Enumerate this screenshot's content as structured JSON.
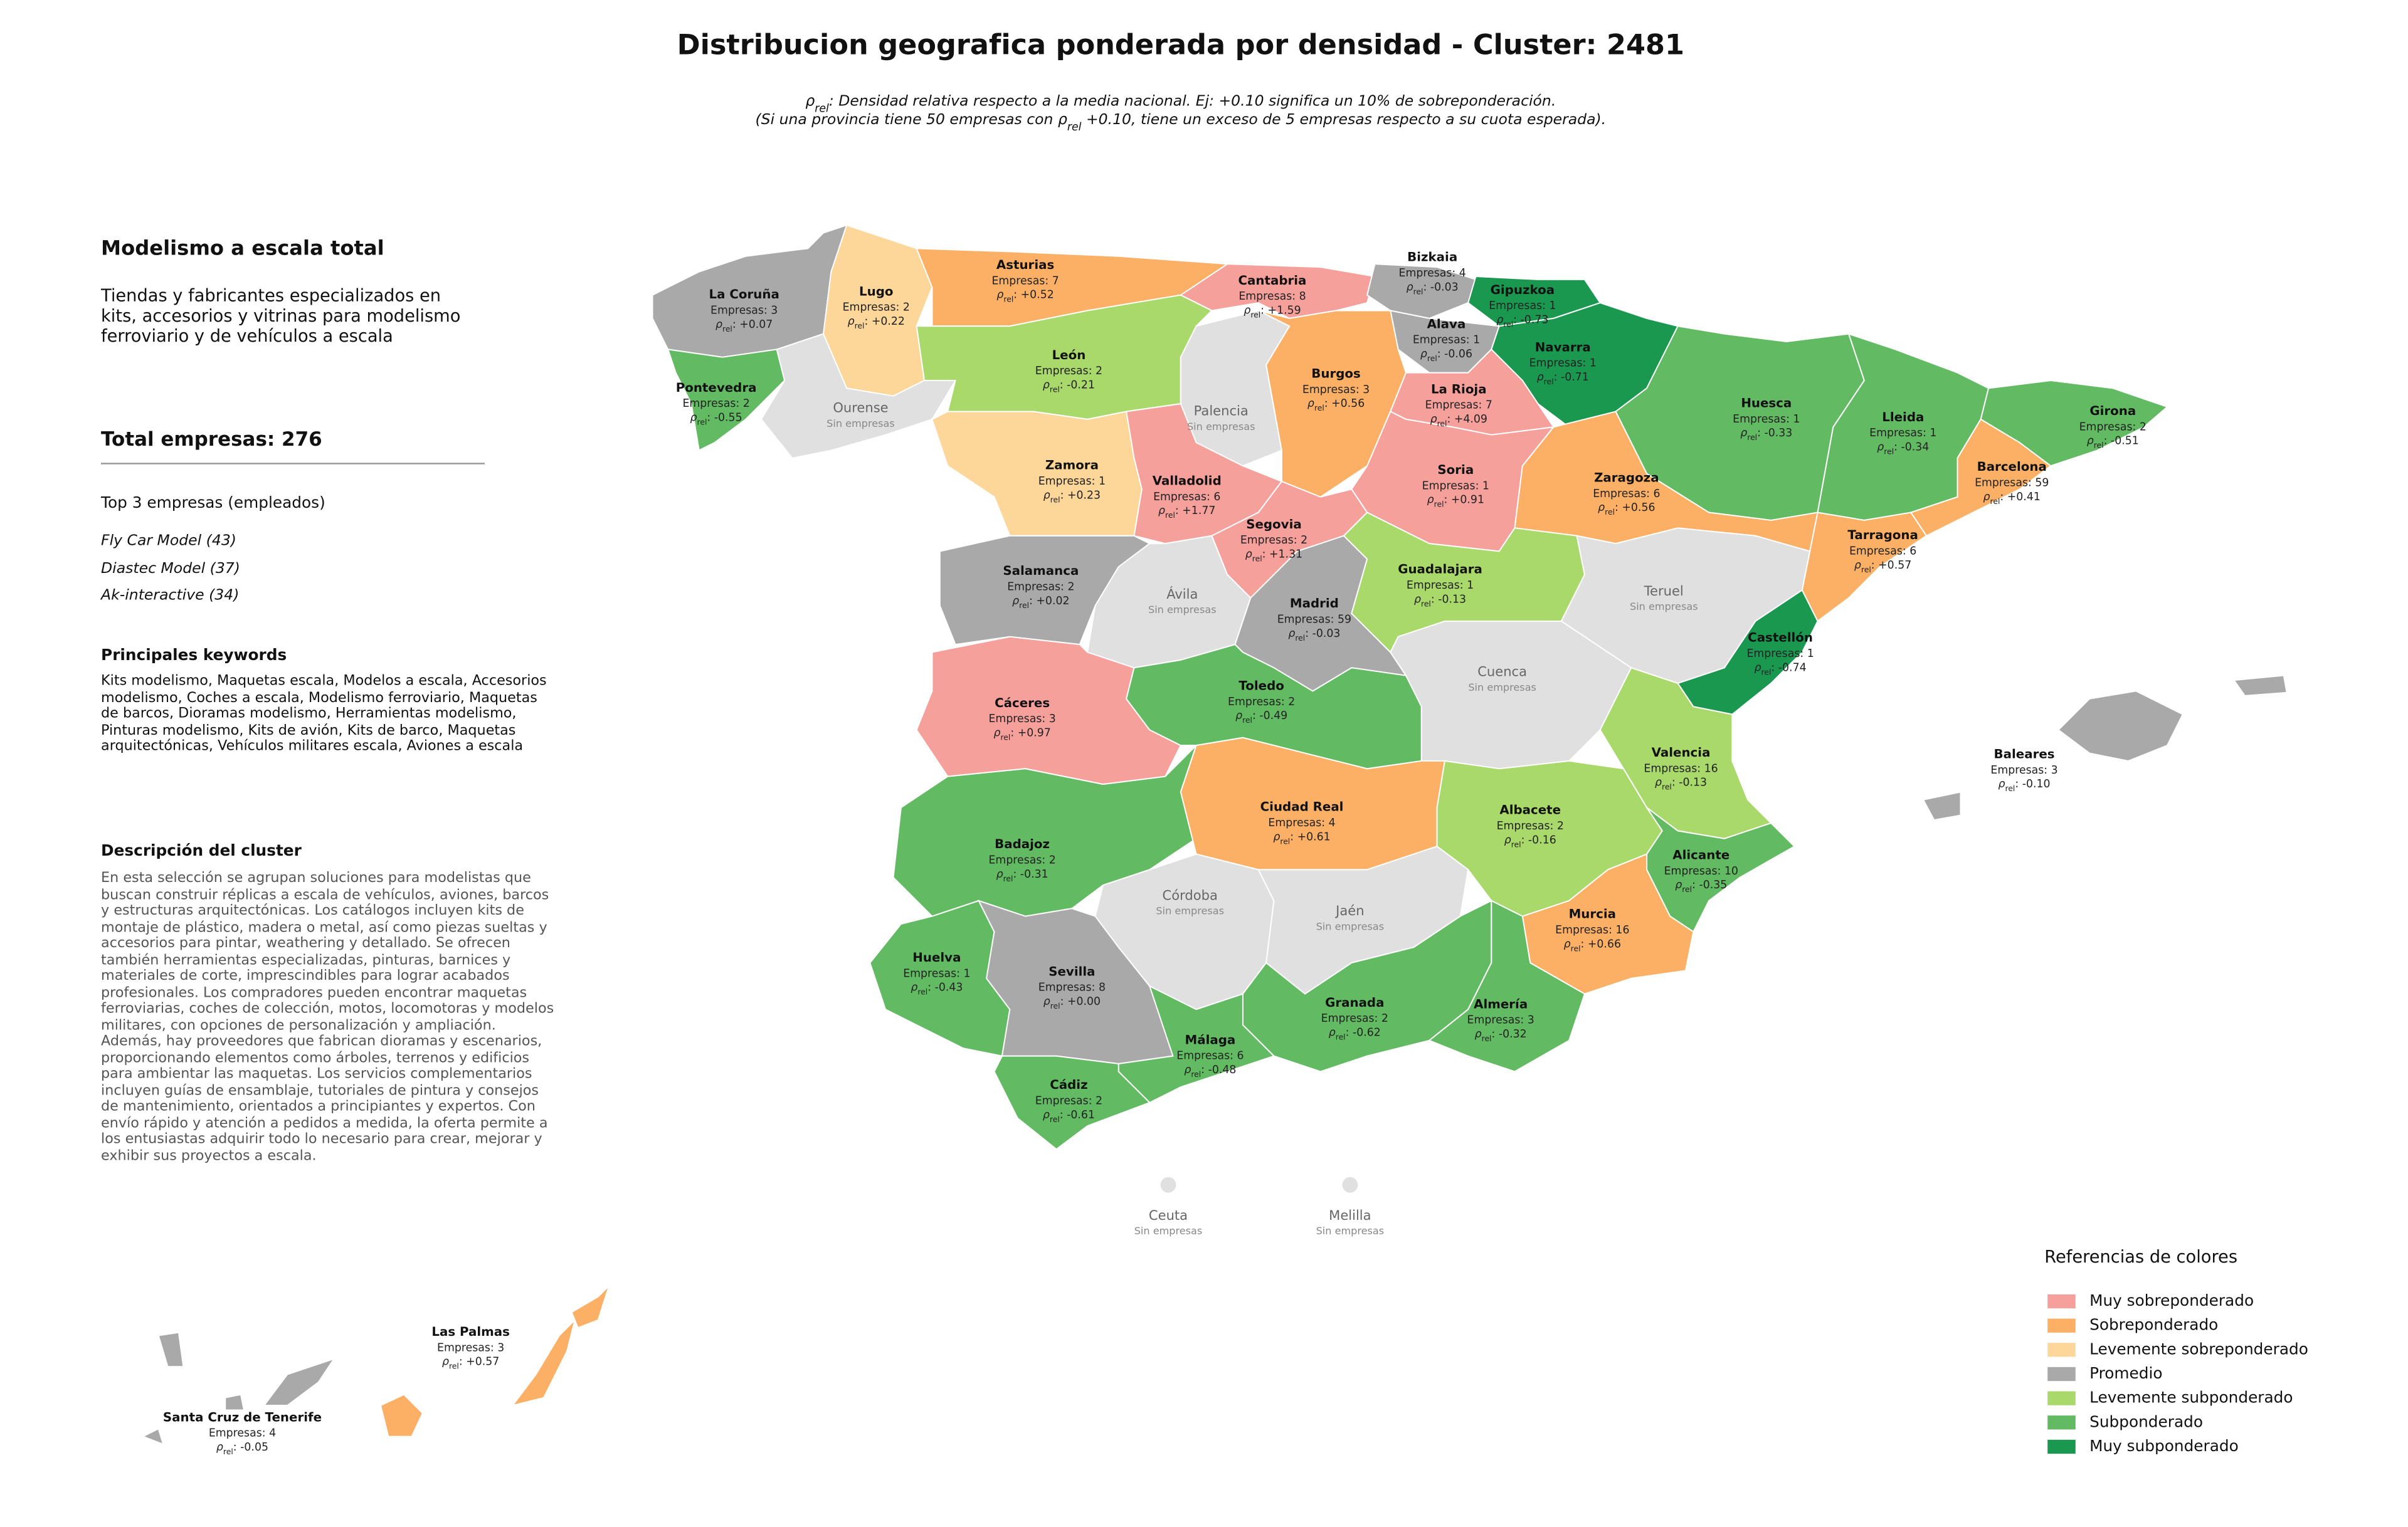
{
  "title": "Distribucion geografica ponderada por densidad - Cluster: 2481",
  "subtitle": [
    [
      {
        "text": "ρ"
      },
      {
        "text": "rel",
        "subscript": true
      },
      {
        "text": ": Densidad relativa respecto a la media nacional. Ej: +0.10 significa un 10% de sobreponderación."
      }
    ],
    [
      {
        "text": "(Si una provincia tiene 50 empresas con ρ"
      },
      {
        "text": "rel",
        "subscript": true
      },
      {
        "text": " +0.10, tiene un exceso de 5 empresas respecto a su cuota esperada)."
      }
    ]
  ],
  "panel": {
    "heading": "Modelismo a escala total",
    "description": "Tiendas y fabricantes especializados en kits, accesorios y vitrinas para modelismo ferroviario y de vehículos a escala",
    "total": "Total empresas: 276",
    "top_header": "Top 3 empresas (empleados)",
    "top": [
      "Fly Car Model (43)",
      "Diastec Model (37)",
      "Ak-interactive (34)"
    ],
    "keywords_header": "Principales keywords",
    "keywords": "Kits modelismo, Maquetas escala, Modelos a escala, Accesorios modelismo, Coches a escala, Modelismo ferroviario, Maquetas de barcos, Dioramas modelismo, Herramientas modelismo, Pinturas modelismo, Kits de avión, Kits de barco, Maquetas arquitectónicas, Vehículos militares escala, Aviones a escala",
    "cluster_header": "Descripción del cluster",
    "cluster_text": "En esta selección se agrupan soluciones para modelistas que buscan construir réplicas a escala de vehículos, aviones, barcos y estructuras arquitectónicas. Los catálogos incluyen kits de montaje de plástico, madera o metal, así como piezas sueltas y accesorios para pintar, weathering y detallado. Se ofrecen también herramientas especializadas, pinturas, barnices y materiales de corte, imprescindibles para lograr acabados profesionales. Los compradores pueden encontrar maquetas ferroviarias, coches de colección, motos, locomotoras y modelos militares, con opciones de personalización y ampliación. Además, hay proveedores que fabrican dioramas y escenarios, proporcionando elementos como árboles, terrenos y edificios para ambientar las maquetas. Los servicios complementarios incluyen guías de ensamblaje, tutoriales de pintura y consejos de mantenimiento, orientados a principiantes y expertos. Con envío rápido y atención a pedidos a medida, la oferta permite a los entusiastas adquirir todo lo necesario para crear, mejorar y exhibir sus proyectos a escala."
  },
  "rho_symbol": "ρ",
  "rho_sub": "rel",
  "rho_sep": ": ",
  "provinces": [
    {
      "name": "La Coruña",
      "empresas": "Empresas: 3",
      "rho": "+0.07",
      "color": "#a9a9a9"
    },
    {
      "name": "Lugo",
      "empresas": "Empresas: 2",
      "rho": "+0.22",
      "color": "#fdd699"
    },
    {
      "name": "Asturias",
      "empresas": "Empresas: 7",
      "rho": "+0.52",
      "color": "#fbb065"
    },
    {
      "name": "Cantabria",
      "empresas": "Empresas: 8",
      "rho": "+1.59",
      "color": "#f6a09c"
    },
    {
      "name": "Bizkaia",
      "empresas": "Empresas: 4",
      "rho": "-0.03",
      "color": "#a9a9a9"
    },
    {
      "name": "Gipuzkoa",
      "empresas": "Empresas: 1",
      "rho": "-0.73",
      "color": "#1a9850"
    },
    {
      "name": "Alava",
      "empresas": "Empresas: 1",
      "rho": "-0.06",
      "color": "#a9a9a9"
    },
    {
      "name": "Navarra",
      "empresas": "Empresas: 1",
      "rho": "-0.71",
      "color": "#1a9850"
    },
    {
      "name": "Pontevedra",
      "empresas": "Empresas: 2",
      "rho": "-0.55",
      "color": "#62bb62"
    },
    {
      "name": "Ourense",
      "empresas": "Sin empresas",
      "color": "#e0e0e0"
    },
    {
      "name": "León",
      "empresas": "Empresas: 2",
      "rho": "-0.21",
      "color": "#a8d96a"
    },
    {
      "name": "Palencia",
      "empresas": "Sin empresas",
      "color": "#e0e0e0"
    },
    {
      "name": "Burgos",
      "empresas": "Empresas: 3",
      "rho": "+0.56",
      "color": "#fbb065"
    },
    {
      "name": "La Rioja",
      "empresas": "Empresas: 7",
      "rho": "+4.09",
      "color": "#f6a09c"
    },
    {
      "name": "Huesca",
      "empresas": "Empresas: 1",
      "rho": "-0.33",
      "color": "#62bb62"
    },
    {
      "name": "Lleida",
      "empresas": "Empresas: 1",
      "rho": "-0.34",
      "color": "#62bb62"
    },
    {
      "name": "Girona",
      "empresas": "Empresas: 2",
      "rho": "-0.51",
      "color": "#62bb62"
    },
    {
      "name": "Barcelona",
      "empresas": "Empresas: 59",
      "rho": "+0.41",
      "color": "#fbb065"
    },
    {
      "name": "Zamora",
      "empresas": "Empresas: 1",
      "rho": "+0.23",
      "color": "#fdd699"
    },
    {
      "name": "Valladolid",
      "empresas": "Empresas: 6",
      "rho": "+1.77",
      "color": "#f6a09c"
    },
    {
      "name": "Soria",
      "empresas": "Empresas: 1",
      "rho": "+0.91",
      "color": "#f6a09c"
    },
    {
      "name": "Zaragoza",
      "empresas": "Empresas: 6",
      "rho": "+0.56",
      "color": "#fbb065"
    },
    {
      "name": "Tarragona",
      "empresas": "Empresas: 6",
      "rho": "+0.57",
      "color": "#fbb065"
    },
    {
      "name": "Segovia",
      "empresas": "Empresas: 2",
      "rho": "+1.31",
      "color": "#f6a09c"
    },
    {
      "name": "Salamanca",
      "empresas": "Empresas: 2",
      "rho": "+0.02",
      "color": "#a9a9a9"
    },
    {
      "name": "Ávila",
      "empresas": "Sin empresas",
      "color": "#e0e0e0"
    },
    {
      "name": "Madrid",
      "empresas": "Empresas: 59",
      "rho": "-0.03",
      "color": "#a9a9a9"
    },
    {
      "name": "Guadalajara",
      "empresas": "Empresas: 1",
      "rho": "-0.13",
      "color": "#a8d96a"
    },
    {
      "name": "Teruel",
      "empresas": "Sin empresas",
      "color": "#e0e0e0"
    },
    {
      "name": "Castellón",
      "empresas": "Empresas: 1",
      "rho": "-0.74",
      "color": "#1a9850"
    },
    {
      "name": "Cáceres",
      "empresas": "Empresas: 3",
      "rho": "+0.97",
      "color": "#f6a09c"
    },
    {
      "name": "Toledo",
      "empresas": "Empresas: 2",
      "rho": "-0.49",
      "color": "#62bb62"
    },
    {
      "name": "Cuenca",
      "empresas": "Sin empresas",
      "color": "#e0e0e0"
    },
    {
      "name": "Valencia",
      "empresas": "Empresas: 16",
      "rho": "-0.13",
      "color": "#a8d96a"
    },
    {
      "name": "Baleares",
      "empresas": "Empresas: 3",
      "rho": "-0.10",
      "color": "#a9a9a9"
    },
    {
      "name": "Badajoz",
      "empresas": "Empresas: 2",
      "rho": "-0.31",
      "color": "#62bb62"
    },
    {
      "name": "Ciudad Real",
      "empresas": "Empresas: 4",
      "rho": "+0.61",
      "color": "#fbb065"
    },
    {
      "name": "Albacete",
      "empresas": "Empresas: 2",
      "rho": "-0.16",
      "color": "#a8d96a"
    },
    {
      "name": "Alicante",
      "empresas": "Empresas: 10",
      "rho": "-0.35",
      "color": "#62bb62"
    },
    {
      "name": "Córdoba",
      "empresas": "Sin empresas",
      "color": "#e0e0e0"
    },
    {
      "name": "Jaén",
      "empresas": "Sin empresas",
      "color": "#e0e0e0"
    },
    {
      "name": "Murcia",
      "empresas": "Empresas: 16",
      "rho": "+0.66",
      "color": "#fbb065"
    },
    {
      "name": "Huelva",
      "empresas": "Empresas: 1",
      "rho": "-0.43",
      "color": "#62bb62"
    },
    {
      "name": "Sevilla",
      "empresas": "Empresas: 8",
      "rho": "+0.00",
      "color": "#a9a9a9"
    },
    {
      "name": "Granada",
      "empresas": "Empresas: 2",
      "rho": "-0.62",
      "color": "#62bb62"
    },
    {
      "name": "Almería",
      "empresas": "Empresas: 3",
      "rho": "-0.32",
      "color": "#62bb62"
    },
    {
      "name": "Málaga",
      "empresas": "Empresas: 6",
      "rho": "-0.48",
      "color": "#62bb62"
    },
    {
      "name": "Cádiz",
      "empresas": "Empresas: 2",
      "rho": "-0.61",
      "color": "#62bb62"
    },
    {
      "name": "Ceuta",
      "empresas": "Sin empresas",
      "color": "#e0e0e0"
    },
    {
      "name": "Melilla",
      "empresas": "Sin empresas",
      "color": "#e0e0e0"
    },
    {
      "name": "Las Palmas",
      "empresas": "Empresas: 3",
      "rho": "+0.57",
      "color": "#fbb065"
    },
    {
      "name": "Santa Cruz de Tenerife",
      "empresas": "Empresas: 4",
      "rho": "-0.05",
      "color": "#a9a9a9"
    }
  ],
  "legend": {
    "title": "Referencias de colores",
    "items": [
      {
        "label": "Muy sobreponderado",
        "color": "#f6a09c"
      },
      {
        "label": "Sobreponderado",
        "color": "#fbb065"
      },
      {
        "label": "Levemente sobreponderado",
        "color": "#fdd699"
      },
      {
        "label": "Promedio",
        "color": "#a9a9a9"
      },
      {
        "label": "Levemente subponderado",
        "color": "#a8d96a"
      },
      {
        "label": "Subponderado",
        "color": "#62bb62"
      },
      {
        "label": "Muy subponderado",
        "color": "#1a9850"
      }
    ]
  }
}
